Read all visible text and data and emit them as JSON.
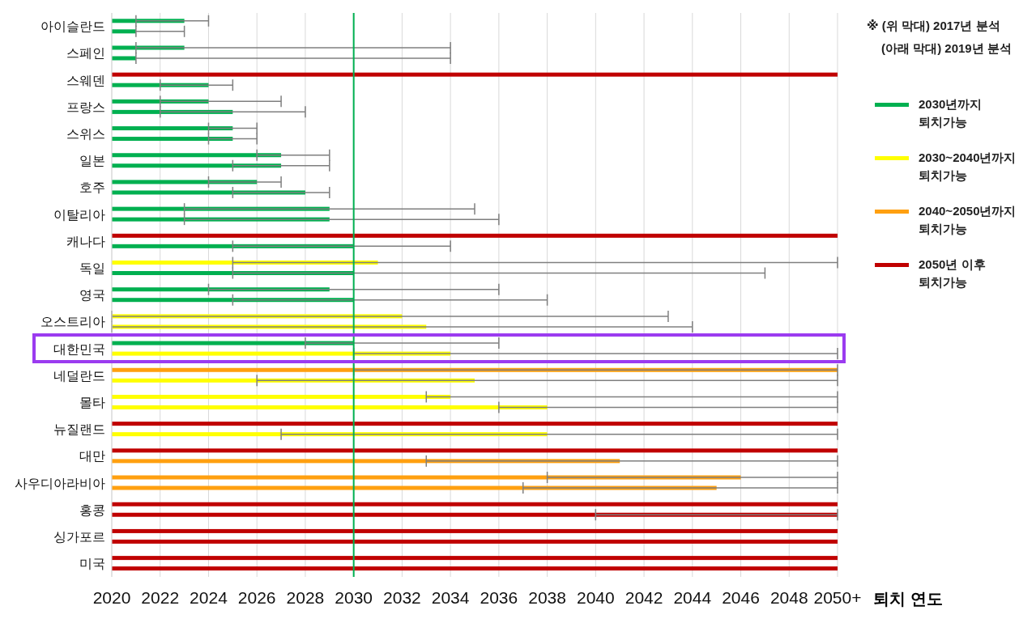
{
  "chart_data": {
    "type": "bar",
    "orientation": "horizontal",
    "categories": [
      "아이슬란드",
      "스페인",
      "스웨덴",
      "프랑스",
      "스위스",
      "일본",
      "호주",
      "이탈리아",
      "캐나다",
      "독일",
      "영국",
      "오스트리아",
      "대한민국",
      "네덜란드",
      "몰타",
      "뉴질랜드",
      "대만",
      "사우디아라비아",
      "홍콩",
      "싱가포르",
      "미국"
    ],
    "series": [
      {
        "values": [
          2023,
          2023,
          2050,
          2024,
          2025,
          2027,
          2026,
          2029,
          2050,
          2031,
          2029,
          2032,
          2030,
          2050,
          2034,
          2050,
          2050,
          2046,
          2050,
          2050,
          2050
        ],
        "colors": [
          "#00b050",
          "#00b050",
          "#c00000",
          "#00b050",
          "#00b050",
          "#00b050",
          "#00b050",
          "#00b050",
          "#c00000",
          "#ffff00",
          "#00b050",
          "#ffff00",
          "#00b050",
          "#ffa010",
          "#ffff00",
          "#c00000",
          "#c00000",
          "#ffa010",
          "#c00000",
          "#c00000",
          "#c00000"
        ],
        "errors": [
          [
            2021,
            2024
          ],
          [
            2021,
            2034
          ],
          null,
          [
            2022,
            2027
          ],
          [
            2024,
            2026
          ],
          [
            2026,
            2029
          ],
          [
            2024,
            2027
          ],
          [
            2023,
            2035
          ],
          null,
          [
            2025,
            2050
          ],
          [
            2024,
            2036
          ],
          [
            2020,
            2043
          ],
          [
            2028,
            2036
          ],
          [
            2030,
            2050
          ],
          [
            2033,
            2050
          ],
          null,
          null,
          [
            2038,
            2050
          ],
          null,
          null,
          null
        ]
      },
      {
        "values": [
          2021,
          2021,
          2024,
          2025,
          2025,
          2027,
          2028,
          2029,
          2030,
          2030,
          2030,
          2033,
          2034,
          2035,
          2038,
          2038,
          2041,
          2045,
          2050,
          2050,
          2050
        ],
        "colors": [
          "#00b050",
          "#00b050",
          "#00b050",
          "#00b050",
          "#00b050",
          "#00b050",
          "#00b050",
          "#00b050",
          "#00b050",
          "#00b050",
          "#00b050",
          "#ffff00",
          "#ffff00",
          "#ffff00",
          "#ffff00",
          "#ffff00",
          "#ffa010",
          "#ffa010",
          "#c00000",
          "#c00000",
          "#c00000"
        ],
        "errors": [
          [
            2021,
            2023
          ],
          [
            2021,
            2034
          ],
          [
            2022,
            2025
          ],
          [
            2022,
            2028
          ],
          [
            2024,
            2026
          ],
          [
            2025,
            2029
          ],
          [
            2025,
            2029
          ],
          [
            2023,
            2036
          ],
          [
            2025,
            2034
          ],
          [
            2025,
            2047
          ],
          [
            2025,
            2038
          ],
          [
            2020,
            2044
          ],
          [
            2030,
            2050
          ],
          [
            2026,
            2050
          ],
          [
            2036,
            2050
          ],
          [
            2027,
            2050
          ],
          [
            2033,
            2050
          ],
          [
            2037,
            2050
          ],
          [
            2040,
            2050
          ],
          null,
          null
        ]
      },
      {
        "name": "2030년까지 퇴치가능",
        "color": "#00b050",
        "values": [
          null,
          null,
          null,
          null,
          null,
          null,
          null,
          null,
          null,
          null,
          null,
          null,
          null,
          null,
          null,
          null,
          null,
          null,
          null,
          null,
          null
        ]
      },
      {
        "name": "2030~2040년까지 퇴치가능",
        "color": "#ffff00",
        "values": [
          null,
          null,
          null,
          null,
          null,
          null,
          null,
          null,
          null,
          null,
          null,
          null,
          null,
          null,
          null,
          null,
          null,
          null,
          null,
          null,
          null
        ]
      },
      {
        "name": "2040~2050년까지 퇴치가능",
        "color": "#ffa010",
        "values": [
          null,
          null,
          null,
          null,
          null,
          null,
          null,
          null,
          null,
          null,
          null,
          null,
          null,
          null,
          null,
          null,
          null,
          null,
          null,
          null,
          null
        ]
      },
      {
        "name": "2050년 이후 퇴치가능",
        "color": "#c00000",
        "values": [
          null,
          null,
          null,
          null,
          null,
          null,
          null,
          null,
          null,
          null,
          null,
          null,
          null,
          null,
          null,
          null,
          null,
          null,
          null,
          null,
          null
        ]
      }
    ],
    "xlim": [
      2020,
      2050
    ],
    "xticks": [
      2020,
      2022,
      2024,
      2026,
      2028,
      2030,
      2032,
      2034,
      2036,
      2038,
      2040,
      2042,
      2044,
      2046,
      2048,
      {
        "value": 2050,
        "label": "2050+"
      }
    ],
    "xlabel": "퇴치 연도",
    "ref_lines": [
      {
        "axis": "x",
        "value": 2030,
        "color": "#00b050"
      }
    ],
    "grid": "x",
    "legend": "top right",
    "annotations": [
      "※ (위 막대) 2017년 분석",
      "(아래 막대) 2019년 분석"
    ]
  }
}
